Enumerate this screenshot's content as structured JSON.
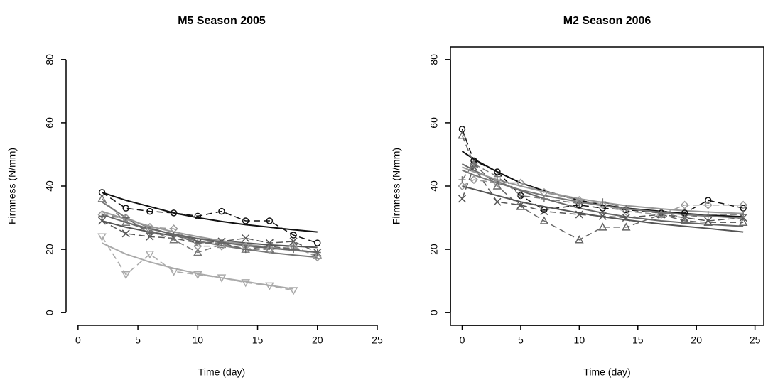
{
  "chart_data": [
    {
      "type": "line",
      "title": "M5 Season 2005",
      "x_label": "Time (day)",
      "y_label": "Firmness (N/mm)",
      "x": [
        2,
        4,
        6,
        8,
        10,
        12,
        14,
        16,
        18,
        20
      ],
      "xlim": [
        -1,
        25
      ],
      "ylim": [
        -4,
        84
      ],
      "xticks": [
        0,
        5,
        10,
        15,
        20,
        25
      ],
      "yticks": [
        0,
        20,
        40,
        60,
        80
      ],
      "box": false,
      "series": [
        {
          "color": "#111111",
          "marker": "circle",
          "values": [
            38,
            33,
            32,
            31.5,
            30.5,
            32,
            29,
            29,
            24.5,
            22
          ],
          "fit": [
            38,
            35.5,
            33.5,
            31.5,
            30,
            28.8,
            27.8,
            27,
            26.2,
            25.5
          ]
        },
        {
          "color": "#aaaaaa",
          "marker": "triangle-down",
          "values": [
            24,
            12,
            18.5,
            13,
            12,
            11,
            9.5,
            8.5,
            7,
            null
          ],
          "fit": [
            22,
            18.5,
            16,
            14,
            12.3,
            11,
            9.8,
            8.6,
            7.5,
            null
          ]
        },
        {
          "color": "#555555",
          "marker": "x",
          "values": [
            29,
            25,
            24,
            23.5,
            22,
            22.5,
            23.5,
            22,
            22.5,
            19
          ],
          "fit": [
            29,
            27,
            25.5,
            24.3,
            23.4,
            22.6,
            22,
            21.4,
            21,
            20.6
          ]
        },
        {
          "color": "#777777",
          "marker": "triangle",
          "values": [
            36,
            28.5,
            26,
            23,
            19,
            21.5,
            20,
            20,
            20.5,
            18
          ],
          "fit": [
            35,
            30,
            26.8,
            24.5,
            22.6,
            21.2,
            20,
            19,
            18.2,
            17.5
          ]
        },
        {
          "color": "#999999",
          "marker": "diamond",
          "values": [
            31,
            30,
            27,
            26.5,
            21,
            21,
            21,
            20,
            21,
            17.5
          ],
          "fit": [
            32,
            29.5,
            27.3,
            25.5,
            24,
            22.7,
            21.6,
            20.6,
            19.7,
            19
          ]
        },
        {
          "color": "#666666",
          "marker": "plus",
          "values": [
            30.5,
            30,
            25,
            24.5,
            22,
            22,
            20,
            21,
            20,
            19
          ],
          "fit": [
            31,
            28.5,
            26.5,
            24.8,
            23.4,
            22.2,
            21.2,
            20.4,
            19.7,
            19.1
          ]
        }
      ]
    },
    {
      "type": "line",
      "title": "M2 Season 2006",
      "x_label": "Time (day)",
      "y_label": "Firmness (N/mm)",
      "x": [
        0,
        1,
        3,
        5,
        7,
        10,
        12,
        14,
        17,
        19,
        21,
        24
      ],
      "xlim": [
        -1,
        25.75
      ],
      "ylim": [
        -4,
        84
      ],
      "xticks": [
        0,
        5,
        10,
        15,
        20,
        25
      ],
      "yticks": [
        0,
        20,
        40,
        60,
        80
      ],
      "box": true,
      "series": [
        {
          "color": "#111111",
          "marker": "circle",
          "values": [
            58,
            48,
            44.5,
            37,
            32.5,
            34,
            33,
            32.5,
            31.5,
            31.5,
            35.5,
            33
          ],
          "fit": [
            51,
            48.5,
            44.5,
            41,
            38.5,
            35.5,
            34,
            33,
            32,
            31.3,
            30.8,
            30.3
          ]
        },
        {
          "color": "#666666",
          "marker": "triangle",
          "values": [
            56,
            47,
            40,
            33.5,
            29,
            23,
            27,
            27,
            31,
            29,
            28.5,
            28.5
          ],
          "fit": [
            47,
            45,
            41.5,
            38.5,
            36,
            33,
            31.5,
            30.3,
            29,
            28.4,
            27.9,
            27.3
          ]
        },
        {
          "color": "#555555",
          "marker": "x",
          "values": [
            36,
            46,
            35,
            34,
            32,
            31,
            30.5,
            30,
            31,
            30,
            29,
            30
          ],
          "fit": [
            40,
            39,
            37,
            35,
            33.5,
            31.5,
            30.3,
            29.3,
            28,
            27.3,
            26.6,
            25.5
          ]
        },
        {
          "color": "#999999",
          "marker": "diamond",
          "values": [
            40,
            42,
            41,
            41,
            38,
            35.5,
            34,
            32,
            31,
            34,
            34,
            34
          ],
          "fit": [
            46,
            44.5,
            42,
            40,
            38.2,
            36,
            34.8,
            33.8,
            32.8,
            32.2,
            31.8,
            31.3
          ]
        },
        {
          "color": "#777777",
          "marker": "plus",
          "values": [
            42,
            47,
            43,
            37,
            36,
            34.5,
            35,
            33,
            31.5,
            30,
            31,
            31
          ],
          "fit": [
            45,
            43.5,
            41,
            38.8,
            37,
            35,
            33.8,
            32.8,
            31.7,
            31,
            30.5,
            29.9
          ]
        }
      ]
    }
  ]
}
